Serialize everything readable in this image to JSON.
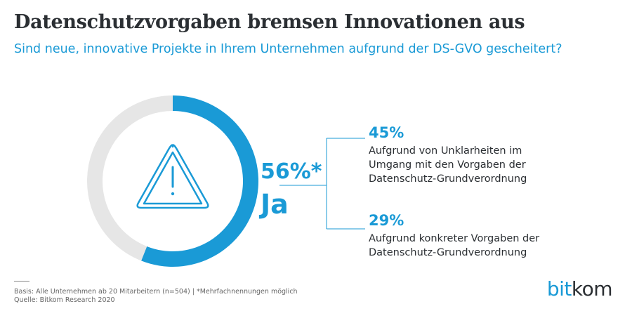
{
  "title": "Datenschutzvorgaben bremsen Innovationen aus",
  "subtitle": "Sind neue, innovative Projekte in Ihrem Unternehmen aufgrund der DS-GVO gescheitert?",
  "colors": {
    "accent": "#1a9ad6",
    "rest": "#e6e6e6",
    "text": "#2b2f33"
  },
  "icon": "warning-triangle-icon",
  "chart_data": {
    "type": "pie",
    "variant": "donut",
    "slices": [
      {
        "label": "Ja",
        "value": 56,
        "display": "56%*"
      },
      {
        "label": "",
        "value": 44
      }
    ],
    "breakdown": [
      {
        "value": "45%",
        "text_lines": [
          "Aufgrund von Unklarheiten im",
          "Umgang mit den Vorgaben der",
          "Datenschutz-Grundverordnung"
        ]
      },
      {
        "value": "29%",
        "text_lines": [
          "Aufgrund konkreter Vorgaben der",
          "Datenschutz-Grundverordnung"
        ]
      }
    ]
  },
  "footnote": {
    "line1": "Basis: Alle Unternehmen ab 20 Mitarbeitern (n=504) | *Mehrfachnennungen möglich",
    "line2": "Quelle: Bitkom Research 2020"
  },
  "logo": {
    "part1": "bit",
    "part2": "kom"
  }
}
